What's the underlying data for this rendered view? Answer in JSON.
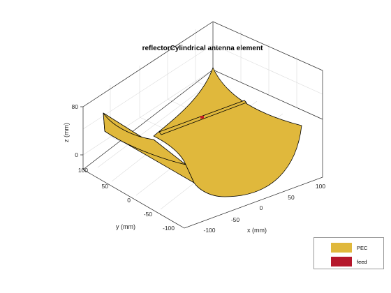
{
  "figure": {
    "title": "reflectorCylindrical antenna element",
    "x_label": "x (mm)",
    "y_label": "y (mm)",
    "z_label": "z (mm)",
    "x_ticks": [
      "-100",
      "-50",
      "0",
      "50",
      "100"
    ],
    "y_ticks": [
      "100",
      "50",
      "0",
      "-50",
      "-100"
    ],
    "z_ticks": [
      "80",
      "0"
    ]
  },
  "legend": {
    "items": [
      {
        "label": "PEC",
        "color": "#e0b83c"
      },
      {
        "label": "feed",
        "color": "#b5172b"
      }
    ]
  },
  "colors": {
    "reflector": "#e0b83c",
    "feed": "#c81d25",
    "axes": "#262626",
    "grid": "#dcdcdc"
  }
}
